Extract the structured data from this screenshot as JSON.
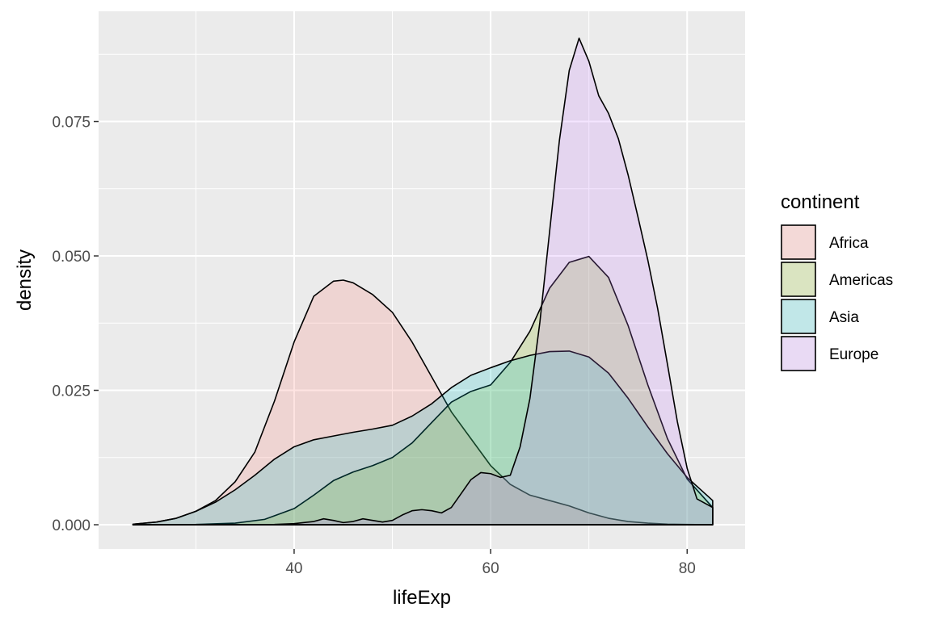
{
  "chart_data": {
    "type": "area",
    "xlabel": "lifeExp",
    "ylabel": "density",
    "xlim": [
      20.1,
      85.9
    ],
    "ylim": [
      -0.0045,
      0.0955
    ],
    "x_ticks": [
      40,
      60,
      80
    ],
    "y_ticks": [
      0.0,
      0.025,
      0.05,
      0.075
    ],
    "x_tick_labels": [
      "40",
      "60",
      "80"
    ],
    "y_tick_labels": [
      "0.000",
      "0.025",
      "0.050",
      "0.075"
    ],
    "grid": true,
    "legend": {
      "title": "continent",
      "placement": "right"
    },
    "series": [
      {
        "name": "Africa",
        "color": "#F8766D",
        "x": [
          23.6,
          26,
          28,
          30,
          32,
          34,
          36,
          38,
          40,
          42,
          44,
          45,
          46,
          48,
          50,
          52,
          54,
          56,
          58,
          60,
          62,
          64,
          66,
          68,
          70,
          72,
          74,
          76,
          78,
          80,
          82.6
        ],
        "y": [
          0.0001,
          0.0005,
          0.0012,
          0.0025,
          0.0045,
          0.008,
          0.0135,
          0.023,
          0.034,
          0.0425,
          0.0453,
          0.0455,
          0.045,
          0.0428,
          0.0395,
          0.034,
          0.0275,
          0.021,
          0.016,
          0.011,
          0.0075,
          0.0055,
          0.0045,
          0.0035,
          0.0022,
          0.0012,
          0.0006,
          0.0003,
          0.0001,
          5e-05,
          0.0
        ]
      },
      {
        "name": "Americas",
        "color": "#7CAE00",
        "x": [
          23.6,
          30,
          34,
          37,
          40,
          42,
          44,
          46,
          48,
          50,
          52,
          54,
          56,
          58,
          60,
          62,
          64,
          66,
          68,
          70,
          72,
          74,
          76,
          78,
          80,
          82.6
        ],
        "y": [
          0.0,
          5e-05,
          0.0003,
          0.001,
          0.003,
          0.0055,
          0.0082,
          0.0098,
          0.011,
          0.0125,
          0.0152,
          0.019,
          0.0228,
          0.0248,
          0.026,
          0.0302,
          0.036,
          0.044,
          0.0488,
          0.0499,
          0.046,
          0.037,
          0.026,
          0.016,
          0.0085,
          0.0032
        ]
      },
      {
        "name": "Asia",
        "color": "#00BFC4",
        "x": [
          23.6,
          26,
          28,
          30,
          32,
          34,
          36,
          38,
          40,
          42,
          44,
          46,
          48,
          50,
          52,
          54,
          56,
          58,
          60,
          62,
          64,
          66,
          68,
          70,
          72,
          74,
          76,
          78,
          80,
          82.6
        ],
        "y": [
          0.0001,
          0.0005,
          0.0012,
          0.0025,
          0.0042,
          0.0065,
          0.0092,
          0.0122,
          0.0145,
          0.0158,
          0.0165,
          0.0172,
          0.0178,
          0.0185,
          0.0202,
          0.0225,
          0.0255,
          0.0278,
          0.0292,
          0.0305,
          0.0315,
          0.0322,
          0.0323,
          0.0312,
          0.0282,
          0.0235,
          0.0182,
          0.0132,
          0.0088,
          0.0045
        ]
      },
      {
        "name": "Europe",
        "color": "#C77CFF",
        "x": [
          23.6,
          38,
          40,
          42,
          43,
          44,
          45,
          46,
          47,
          48,
          49,
          50,
          51,
          52,
          53,
          54,
          55,
          56,
          57,
          58,
          59,
          60,
          61,
          62,
          63,
          64,
          65,
          66,
          67,
          68,
          69,
          70,
          71,
          72,
          73,
          74,
          75,
          76,
          77,
          78,
          79,
          80,
          81,
          82.6
        ],
        "y": [
          0.0,
          5e-05,
          0.0002,
          0.0006,
          0.0011,
          0.0008,
          0.0004,
          0.0006,
          0.0011,
          0.0008,
          0.0005,
          0.0008,
          0.0018,
          0.0026,
          0.0028,
          0.0026,
          0.0022,
          0.0032,
          0.0058,
          0.0084,
          0.0097,
          0.0095,
          0.0088,
          0.0092,
          0.0145,
          0.0235,
          0.0375,
          0.0545,
          0.0715,
          0.0845,
          0.0905,
          0.0862,
          0.0798,
          0.0765,
          0.0718,
          0.065,
          0.0572,
          0.0492,
          0.0402,
          0.0298,
          0.0192,
          0.0105,
          0.0048,
          0.0032
        ]
      }
    ]
  }
}
